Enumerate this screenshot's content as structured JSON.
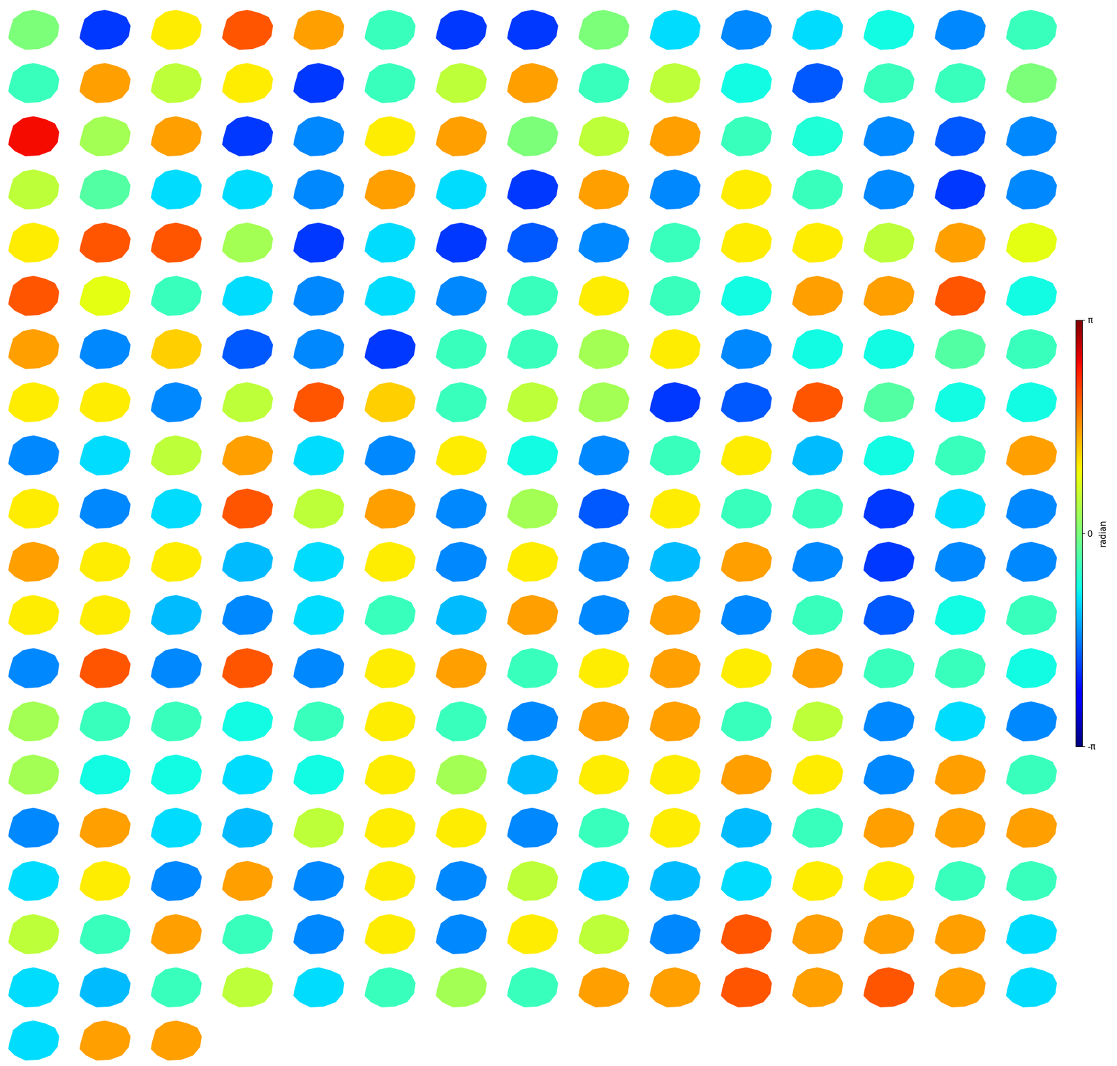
{
  "chart_data": {
    "type": "image_grid",
    "color": "jet",
    "tick_labels": false,
    "values": [
      0,
      -2,
      1,
      2,
      1.5,
      -0.5,
      -2,
      -2,
      0,
      -1,
      -1.5,
      -1,
      -0.8,
      -1.5,
      -0.5,
      -0.5,
      1.5,
      0.5,
      1,
      -2,
      -0.5,
      0.5,
      1.5,
      -0.5,
      0.5,
      -0.8,
      -1.8,
      -0.5,
      -0.5,
      0,
      2.5,
      0.3,
      1.5,
      -2,
      -1.5,
      1,
      1.5,
      0,
      0.5,
      1.5,
      -0.5,
      -0.7,
      -1.5,
      -1.8,
      -1.5,
      0.5,
      -0.3,
      -1,
      -1,
      -1.5,
      1.5,
      -1,
      -2,
      1.5,
      -1.5,
      1,
      -0.5,
      -1.5,
      -2,
      -1.5,
      1,
      2,
      2,
      0.3,
      -2,
      -1,
      -2,
      -1.8,
      -1.5,
      -0.5,
      1,
      1,
      0.5,
      1.5,
      0.8,
      2,
      0.8,
      -0.5,
      -1,
      -1.5,
      -1,
      -1.5,
      -0.5,
      1,
      -0.5,
      -0.8,
      1.5,
      1.5,
      2,
      -0.8,
      1.5,
      -1.5,
      1.2,
      -1.8,
      -1.5,
      -2,
      -0.5,
      -0.5,
      0.3,
      1,
      -1.5,
      -0.8,
      -0.8,
      -0.3,
      -0.5,
      1,
      1,
      -1.5,
      0.5,
      2,
      1.2,
      -0.5,
      0.5,
      0.3,
      -2,
      -1.8,
      2,
      -0.3,
      -0.8,
      -0.8,
      -1.5,
      -1,
      0.5,
      1.5,
      -1,
      -1.5,
      1,
      -0.8,
      -1.5,
      -0.5,
      1,
      -1.2,
      -0.8,
      -0.5,
      1.5,
      1,
      -1.5,
      -1,
      2,
      0.5,
      1.5,
      -1.5,
      0.3,
      -1.8,
      1,
      -0.5,
      -0.5,
      -2,
      -1,
      -1.5,
      1.5,
      1,
      1,
      -1.2,
      -1,
      1,
      -1.5,
      1,
      -1.5,
      -1.2,
      1.5,
      -1.5,
      -2,
      -1.5,
      -1.5,
      1,
      1,
      -1.2,
      -1.5,
      -1,
      -0.5,
      -1.2,
      1.5,
      -1.5,
      1.5,
      -1.5,
      -0.5,
      -1.8,
      -0.8,
      -0.5,
      -1.5,
      2,
      -1.5,
      2,
      -1.5,
      1,
      1.5,
      -0.5,
      1,
      1.5,
      1,
      1.5,
      -0.5,
      -0.5,
      -0.8,
      0.3,
      -0.5,
      -0.5,
      -0.8,
      -0.5,
      1,
      -0.5,
      -1.5,
      1.5,
      1.5,
      -0.5,
      0.5,
      -1.5,
      -1,
      -1.5,
      0.3,
      -0.8,
      -0.8,
      -1,
      -0.8,
      1,
      0.3,
      -1.2,
      1,
      1,
      1.5,
      1,
      -1.5,
      1.5,
      -0.5,
      -1.5,
      1.5,
      -1,
      -1.2,
      0.5,
      1,
      1,
      -1.5,
      -0.5,
      1,
      -1.2,
      -0.5,
      1.5,
      1.5,
      1.5,
      -1,
      1,
      -1.5,
      1.5,
      -1.5,
      1,
      -1.5,
      0.5,
      -1,
      -1.2,
      -1,
      1,
      1,
      -0.5,
      -0.5,
      0.5,
      -0.5,
      1.5,
      -0.5,
      -1.5,
      1,
      -1.5,
      1,
      0.5,
      -1.5,
      2,
      1.5,
      1.5,
      1.5,
      -1,
      -1,
      -1.2,
      -0.5,
      0.5,
      -1,
      -0.5,
      0.3,
      -0.5,
      1.5,
      1.5,
      2,
      1.5,
      2,
      1.5,
      -1,
      -1,
      1.5,
      1.5
    ],
    "colorbar_label": "radian",
    "colorbar_lim": [
      -3.141592653589793,
      3.141592653589793
    ],
    "colorbar_ticks": [
      {
        "value": -3.141592653589793,
        "label": "-π"
      },
      0,
      {
        "value": 3.141592653589793,
        "label": "π"
      }
    ]
  }
}
